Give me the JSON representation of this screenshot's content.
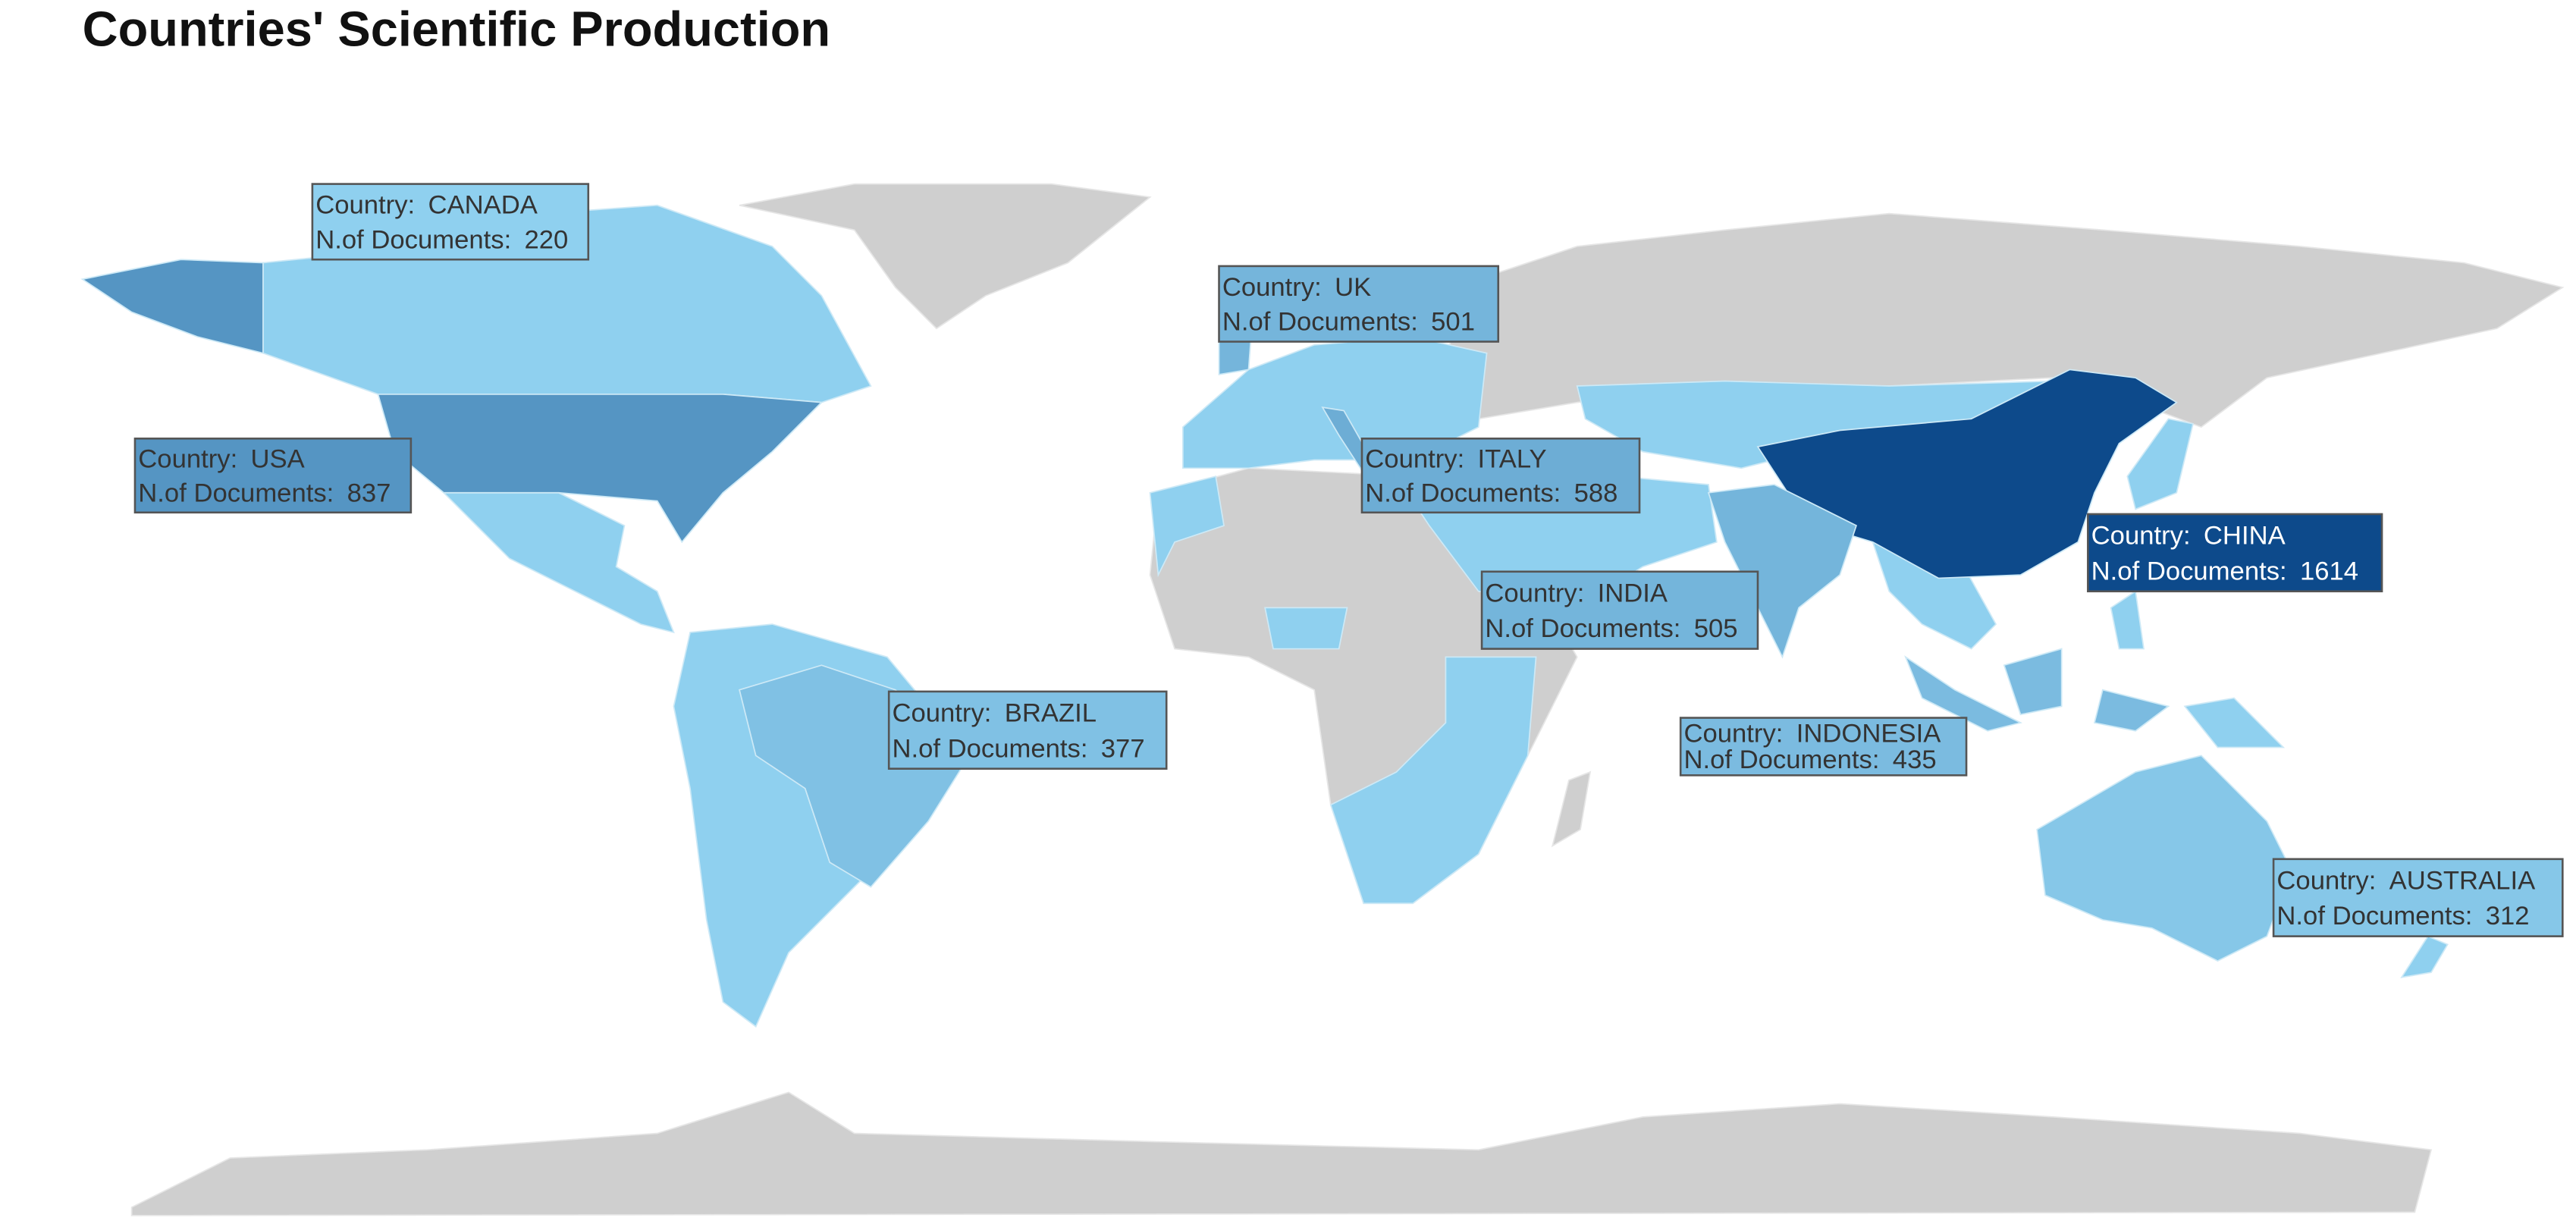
{
  "title": "Countries' Scientific Production",
  "field_labels": {
    "country": "Country:",
    "documents": "N.of Documents:"
  },
  "color_scale": {
    "low": "#8fd0ef",
    "high": "#0d4a8b"
  },
  "countries": [
    {
      "name": "CANADA",
      "documents": 220
    },
    {
      "name": "USA",
      "documents": 837
    },
    {
      "name": "UK",
      "documents": 501
    },
    {
      "name": "ITALY",
      "documents": 588
    },
    {
      "name": "CHINA",
      "documents": 1614
    },
    {
      "name": "INDIA",
      "documents": 505
    },
    {
      "name": "BRAZIL",
      "documents": 377
    },
    {
      "name": "INDONESIA",
      "documents": 435
    },
    {
      "name": "AUSTRALIA",
      "documents": 312
    }
  ]
}
